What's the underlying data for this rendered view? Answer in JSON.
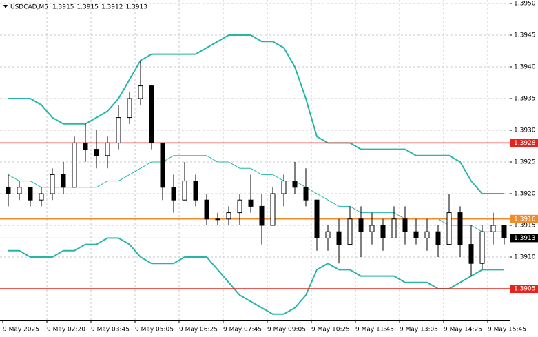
{
  "chart_data": {
    "type": "candlestick",
    "symbol": "USDCAD,M5",
    "header_values": [
      1.3915,
      1.3915,
      1.3912,
      1.3913
    ],
    "categories": [
      "9 May 2025",
      null,
      null,
      null,
      "9 May 02:20",
      null,
      null,
      null,
      "9 May 03:45",
      null,
      null,
      null,
      "9 May 05:05",
      null,
      null,
      null,
      "9 May 06:25",
      null,
      null,
      null,
      "9 May 07:45",
      null,
      null,
      null,
      "9 May 09:05",
      null,
      null,
      null,
      "9 May 10:25",
      null,
      null,
      null,
      "9 May 11:45",
      null,
      null,
      null,
      "9 May 13:05",
      null,
      null,
      null,
      "9 May 14:25",
      null,
      null,
      null,
      "9 May 15:45",
      null
    ],
    "open": [
      1.3921,
      1.392,
      1.3921,
      1.3919,
      1.392,
      1.3923,
      1.3921,
      1.3928,
      1.3927,
      1.3926,
      1.3928,
      1.3932,
      1.3935,
      1.3937,
      1.3928,
      1.3921,
      1.3919,
      1.3922,
      1.3919,
      1.3916,
      1.3916,
      1.3917,
      1.3919,
      1.3918,
      1.3915,
      1.392,
      1.3922,
      1.3921,
      1.3919,
      1.3913,
      1.3914,
      1.3912,
      1.3916,
      1.3914,
      1.3915,
      1.3913,
      1.3916,
      1.3914,
      1.3913,
      1.3914,
      1.3912,
      1.3917,
      1.3912,
      1.3909,
      1.3914,
      1.3915
    ],
    "high": [
      1.3923,
      1.3922,
      1.3921,
      1.3921,
      1.3924,
      1.3925,
      1.3929,
      1.3931,
      1.393,
      1.3929,
      1.3934,
      1.3936,
      1.3941,
      1.3937,
      1.3928,
      1.3923,
      1.3925,
      1.3923,
      1.392,
      1.3917,
      1.3918,
      1.392,
      1.3923,
      1.392,
      1.3921,
      1.3923,
      1.3925,
      1.3924,
      1.3919,
      1.3915,
      1.3916,
      1.3918,
      1.3918,
      1.3917,
      1.3916,
      1.3918,
      1.3918,
      1.3916,
      1.3916,
      1.3915,
      1.392,
      1.3918,
      1.3915,
      1.3915,
      1.3917,
      1.3915
    ],
    "low": [
      1.3918,
      1.3919,
      1.3918,
      1.3918,
      1.3919,
      1.392,
      1.3921,
      1.3925,
      1.3924,
      1.3924,
      1.3927,
      1.3931,
      1.3934,
      1.3927,
      1.3919,
      1.3917,
      1.3919,
      1.3918,
      1.3915,
      1.3915,
      1.3915,
      1.3915,
      1.3917,
      1.3912,
      1.3915,
      1.3918,
      1.392,
      1.3918,
      1.3911,
      1.3911,
      1.3909,
      1.3912,
      1.391,
      1.3912,
      1.3911,
      1.3913,
      1.3912,
      1.3912,
      1.3911,
      1.391,
      1.3912,
      1.391,
      1.3907,
      1.3908,
      1.3912,
      1.3912
    ],
    "close": [
      1.392,
      1.3921,
      1.3919,
      1.392,
      1.3923,
      1.3921,
      1.3928,
      1.3927,
      1.3926,
      1.3928,
      1.3932,
      1.3935,
      1.3937,
      1.3928,
      1.3921,
      1.3919,
      1.3922,
      1.3919,
      1.3916,
      1.3916,
      1.3917,
      1.3919,
      1.3918,
      1.3915,
      1.392,
      1.3922,
      1.3921,
      1.3919,
      1.3913,
      1.3914,
      1.3912,
      1.3916,
      1.3914,
      1.3915,
      1.3913,
      1.3916,
      1.3914,
      1.3913,
      1.3914,
      1.3912,
      1.3917,
      1.3912,
      1.3909,
      1.3914,
      1.3915,
      1.3913
    ],
    "candle_color": "#000000",
    "bands": [
      {
        "color": "#26b5a8",
        "width": 2,
        "values": [
          1.3935,
          1.3935,
          1.3935,
          1.3934,
          1.3932,
          1.3931,
          1.3931,
          1.3931,
          1.3932,
          1.3933,
          1.3935,
          1.3938,
          1.3941,
          1.3942,
          1.3942,
          1.3942,
          1.3942,
          1.3942,
          1.3943,
          1.3944,
          1.3945,
          1.3945,
          1.3945,
          1.3944,
          1.3944,
          1.3943,
          1.394,
          1.3935,
          1.3929,
          1.3928,
          1.3928,
          1.3928,
          1.3927,
          1.3927,
          1.3927,
          1.3927,
          1.3927,
          1.3926,
          1.3926,
          1.3926,
          1.3926,
          1.3925,
          1.3922,
          1.392,
          1.392,
          1.392
        ]
      },
      {
        "color": "#26b5a8",
        "width": 1,
        "values": [
          1.3923,
          1.3922,
          1.3922,
          1.3921,
          1.3921,
          1.3921,
          1.3921,
          1.3921,
          1.3921,
          1.3922,
          1.3922,
          1.3923,
          1.3924,
          1.3925,
          1.3925,
          1.3926,
          1.3926,
          1.3926,
          1.3926,
          1.3925,
          1.3925,
          1.3924,
          1.3924,
          1.3923,
          1.3923,
          1.3922,
          1.3922,
          1.3921,
          1.392,
          1.3919,
          1.3918,
          1.3918,
          1.3917,
          1.3917,
          1.3917,
          1.3917,
          1.3916,
          1.3916,
          1.3916,
          1.3916,
          1.3915,
          1.3915,
          1.3915,
          1.3914,
          1.3914,
          1.3914
        ]
      },
      {
        "color": "#26b5a8",
        "width": 2,
        "values": [
          1.3911,
          1.3911,
          1.391,
          1.391,
          1.391,
          1.3911,
          1.3911,
          1.3912,
          1.3912,
          1.3913,
          1.3913,
          1.3912,
          1.391,
          1.3909,
          1.3909,
          1.3909,
          1.391,
          1.391,
          1.391,
          1.3908,
          1.3906,
          1.3904,
          1.3903,
          1.3902,
          1.3901,
          1.3901,
          1.3902,
          1.3904,
          1.3908,
          1.3909,
          1.3908,
          1.3908,
          1.3907,
          1.3907,
          1.3907,
          1.3907,
          1.3906,
          1.3906,
          1.3906,
          1.3905,
          1.3905,
          1.3906,
          1.3907,
          1.3908,
          1.3908,
          1.3908
        ]
      }
    ],
    "levels": [
      {
        "value": 1.3928,
        "color": "#e8231c"
      },
      {
        "value": 1.3916,
        "color": "#f08c2a"
      },
      {
        "value": 1.3913,
        "color": "#b4b4b4",
        "box": "#000000"
      },
      {
        "value": 1.3905,
        "color": "#e8231c"
      }
    ],
    "ylim": [
      1.39,
      1.395
    ],
    "yticks": [
      {
        "value": 1.391,
        "label": "1.3910"
      },
      1.3915,
      {
        "value": 1.392,
        "label": "1.3920"
      },
      1.3925,
      {
        "value": 1.393,
        "label": "1.3930"
      },
      1.3935,
      {
        "value": 1.394,
        "label": "1.3940"
      },
      1.3945,
      {
        "value": 1.395,
        "label": "1.3950"
      }
    ],
    "grid": true
  }
}
